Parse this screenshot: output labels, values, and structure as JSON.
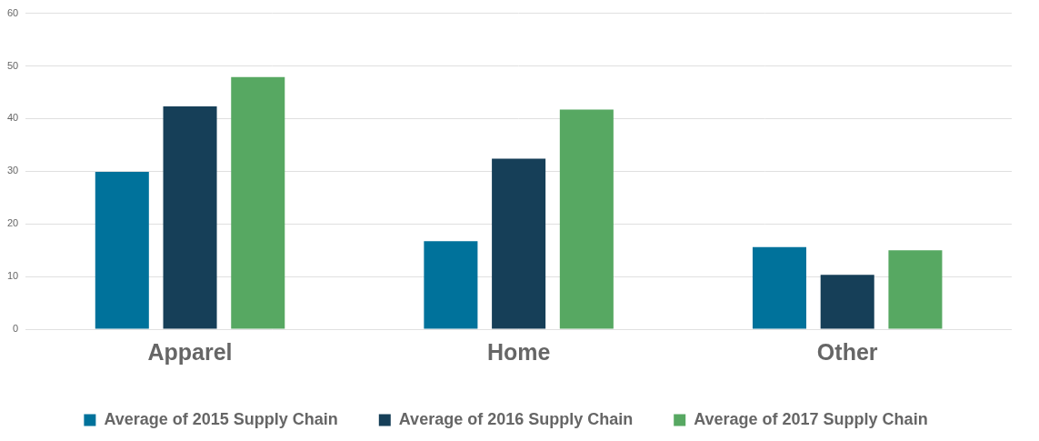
{
  "chart_data": {
    "type": "bar",
    "categories": [
      "Apparel",
      "Home",
      "Other"
    ],
    "series": [
      {
        "name": "Average of 2015 Supply Chain",
        "color": "#00729b",
        "values": [
          29.9,
          16.7,
          15.6
        ]
      },
      {
        "name": "Average of 2016 Supply Chain",
        "color": "#163f58",
        "values": [
          42.3,
          32.4,
          10.3
        ]
      },
      {
        "name": "Average of 2017 Supply Chain",
        "color": "#57a862",
        "values": [
          47.9,
          41.7,
          15.0
        ]
      }
    ],
    "ylim": [
      0,
      60
    ],
    "yticks": [
      0,
      10,
      20,
      30,
      40,
      50,
      60
    ],
    "grid": true,
    "legend": "bottom"
  }
}
